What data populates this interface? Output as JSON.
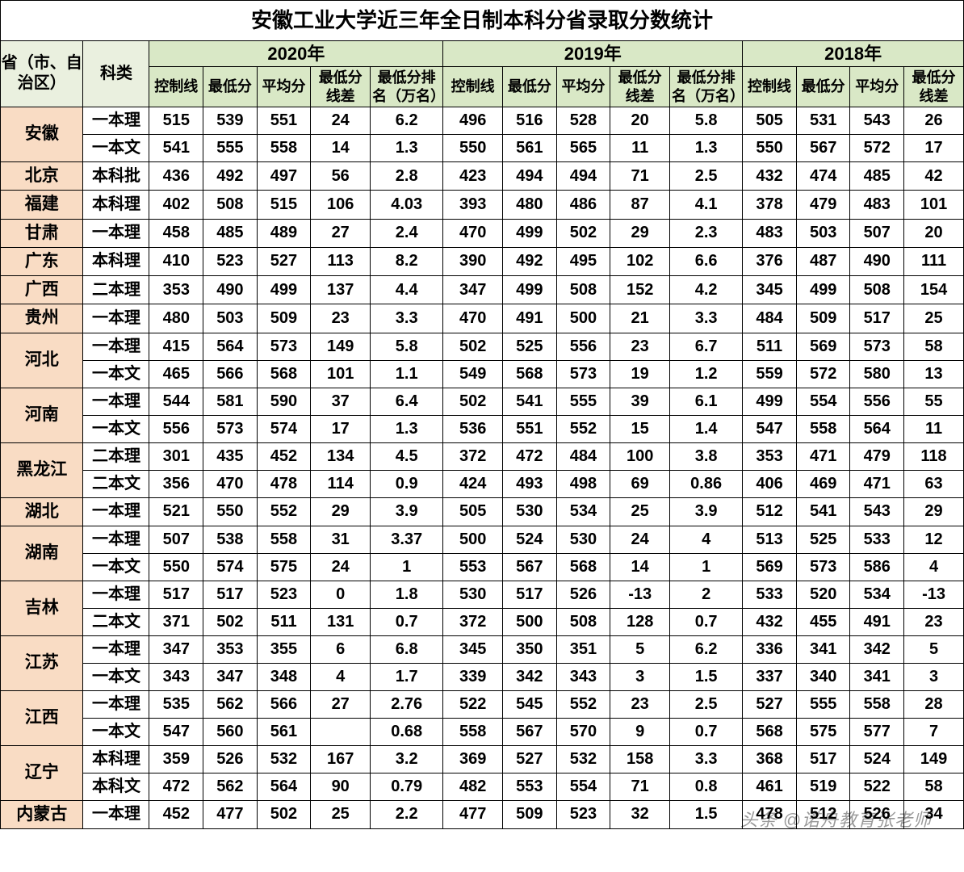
{
  "title": "安徽工业大学近三年全日制本科分省录取分数统计",
  "headers": {
    "province": "省（市、自治区）",
    "category": "科类",
    "years": [
      "2020年",
      "2019年",
      "2018年"
    ],
    "sub2020": [
      "控制线",
      "最低分",
      "平均分",
      "最低分线差",
      "最低分排名（万名）"
    ],
    "sub2019": [
      "控制线",
      "最低分",
      "平均分",
      "最低分线差",
      "最低分排名（万名）"
    ],
    "sub2018": [
      "控制线",
      "最低分",
      "平均分",
      "最低分线差"
    ]
  },
  "colors": {
    "header_bg": "#d9e8c6",
    "header_light_bg": "#eaf0df",
    "province_bg": "#f9dcc4",
    "border": "#000000",
    "background": "#ffffff"
  },
  "rows": [
    {
      "province": "安徽",
      "span": 2,
      "category": "一本理",
      "v": [
        "515",
        "539",
        "551",
        "24",
        "6.2",
        "496",
        "516",
        "528",
        "20",
        "5.8",
        "505",
        "531",
        "543",
        "26"
      ]
    },
    {
      "province": "",
      "span": 0,
      "category": "一本文",
      "v": [
        "541",
        "555",
        "558",
        "14",
        "1.3",
        "550",
        "561",
        "565",
        "11",
        "1.3",
        "550",
        "567",
        "572",
        "17"
      ]
    },
    {
      "province": "北京",
      "span": 1,
      "category": "本科批",
      "v": [
        "436",
        "492",
        "497",
        "56",
        "2.8",
        "423",
        "494",
        "494",
        "71",
        "2.5",
        "432",
        "474",
        "485",
        "42"
      ]
    },
    {
      "province": "福建",
      "span": 1,
      "category": "本科理",
      "v": [
        "402",
        "508",
        "515",
        "106",
        "4.03",
        "393",
        "480",
        "486",
        "87",
        "4.1",
        "378",
        "479",
        "483",
        "101"
      ]
    },
    {
      "province": "甘肃",
      "span": 1,
      "category": "一本理",
      "v": [
        "458",
        "485",
        "489",
        "27",
        "2.4",
        "470",
        "499",
        "502",
        "29",
        "2.3",
        "483",
        "503",
        "507",
        "20"
      ]
    },
    {
      "province": "广东",
      "span": 1,
      "category": "本科理",
      "v": [
        "410",
        "523",
        "527",
        "113",
        "8.2",
        "390",
        "492",
        "495",
        "102",
        "6.6",
        "376",
        "487",
        "490",
        "111"
      ]
    },
    {
      "province": "广西",
      "span": 1,
      "category": "二本理",
      "v": [
        "353",
        "490",
        "499",
        "137",
        "4.4",
        "347",
        "499",
        "508",
        "152",
        "4.2",
        "345",
        "499",
        "508",
        "154"
      ]
    },
    {
      "province": "贵州",
      "span": 1,
      "category": "一本理",
      "v": [
        "480",
        "503",
        "509",
        "23",
        "3.3",
        "470",
        "491",
        "500",
        "21",
        "3.3",
        "484",
        "509",
        "517",
        "25"
      ]
    },
    {
      "province": "河北",
      "span": 2,
      "category": "一本理",
      "v": [
        "415",
        "564",
        "573",
        "149",
        "5.8",
        "502",
        "525",
        "556",
        "23",
        "6.7",
        "511",
        "569",
        "573",
        "58"
      ]
    },
    {
      "province": "",
      "span": 0,
      "category": "一本文",
      "v": [
        "465",
        "566",
        "568",
        "101",
        "1.1",
        "549",
        "568",
        "573",
        "19",
        "1.2",
        "559",
        "572",
        "580",
        "13"
      ]
    },
    {
      "province": "河南",
      "span": 2,
      "category": "一本理",
      "v": [
        "544",
        "581",
        "590",
        "37",
        "6.4",
        "502",
        "541",
        "555",
        "39",
        "6.1",
        "499",
        "554",
        "556",
        "55"
      ]
    },
    {
      "province": "",
      "span": 0,
      "category": "一本文",
      "v": [
        "556",
        "573",
        "574",
        "17",
        "1.3",
        "536",
        "551",
        "552",
        "15",
        "1.4",
        "547",
        "558",
        "564",
        "11"
      ]
    },
    {
      "province": "黑龙江",
      "span": 2,
      "category": "二本理",
      "v": [
        "301",
        "435",
        "452",
        "134",
        "4.5",
        "372",
        "472",
        "484",
        "100",
        "3.8",
        "353",
        "471",
        "479",
        "118"
      ]
    },
    {
      "province": "",
      "span": 0,
      "category": "二本文",
      "v": [
        "356",
        "470",
        "478",
        "114",
        "0.9",
        "424",
        "493",
        "498",
        "69",
        "0.86",
        "406",
        "469",
        "471",
        "63"
      ]
    },
    {
      "province": "湖北",
      "span": 1,
      "category": "一本理",
      "v": [
        "521",
        "550",
        "552",
        "29",
        "3.9",
        "505",
        "530",
        "534",
        "25",
        "3.9",
        "512",
        "541",
        "543",
        "29"
      ]
    },
    {
      "province": "湖南",
      "span": 2,
      "category": "一本理",
      "v": [
        "507",
        "538",
        "558",
        "31",
        "3.37",
        "500",
        "524",
        "530",
        "24",
        "4",
        "513",
        "525",
        "533",
        "12"
      ]
    },
    {
      "province": "",
      "span": 0,
      "category": "一本文",
      "v": [
        "550",
        "574",
        "575",
        "24",
        "1",
        "553",
        "567",
        "568",
        "14",
        "1",
        "569",
        "573",
        "586",
        "4"
      ]
    },
    {
      "province": "吉林",
      "span": 2,
      "category": "一本理",
      "v": [
        "517",
        "517",
        "523",
        "0",
        "1.8",
        "530",
        "517",
        "526",
        "-13",
        "2",
        "533",
        "520",
        "534",
        "-13"
      ]
    },
    {
      "province": "",
      "span": 0,
      "category": "二本文",
      "v": [
        "371",
        "502",
        "511",
        "131",
        "0.7",
        "372",
        "500",
        "508",
        "128",
        "0.7",
        "432",
        "455",
        "491",
        "23"
      ]
    },
    {
      "province": "江苏",
      "span": 2,
      "category": "一本理",
      "v": [
        "347",
        "353",
        "355",
        "6",
        "6.8",
        "345",
        "350",
        "351",
        "5",
        "6.2",
        "336",
        "341",
        "342",
        "5"
      ]
    },
    {
      "province": "",
      "span": 0,
      "category": "一本文",
      "v": [
        "343",
        "347",
        "348",
        "4",
        "1.7",
        "339",
        "342",
        "343",
        "3",
        "1.5",
        "337",
        "340",
        "341",
        "3"
      ]
    },
    {
      "province": "江西",
      "span": 2,
      "category": "一本理",
      "v": [
        "535",
        "562",
        "566",
        "27",
        "2.76",
        "522",
        "545",
        "552",
        "23",
        "2.5",
        "527",
        "555",
        "558",
        "28"
      ]
    },
    {
      "province": "",
      "span": 0,
      "category": "一本文",
      "v": [
        "547",
        "560",
        "561",
        "",
        "0.68",
        "558",
        "567",
        "570",
        "9",
        "0.7",
        "568",
        "575",
        "577",
        "7"
      ]
    },
    {
      "province": "辽宁",
      "span": 2,
      "category": "本科理",
      "v": [
        "359",
        "526",
        "532",
        "167",
        "3.2",
        "369",
        "527",
        "532",
        "158",
        "3.3",
        "368",
        "517",
        "524",
        "149"
      ]
    },
    {
      "province": "",
      "span": 0,
      "category": "本科文",
      "v": [
        "472",
        "562",
        "564",
        "90",
        "0.79",
        "482",
        "553",
        "554",
        "71",
        "0.8",
        "461",
        "519",
        "522",
        "58"
      ]
    },
    {
      "province": "内蒙古",
      "span": 1,
      "category": "一本理",
      "v": [
        "452",
        "477",
        "502",
        "25",
        "2.2",
        "477",
        "509",
        "523",
        "32",
        "1.5",
        "478",
        "512",
        "526",
        "34"
      ]
    }
  ],
  "watermark": "头条 @诺舟教育张老师"
}
